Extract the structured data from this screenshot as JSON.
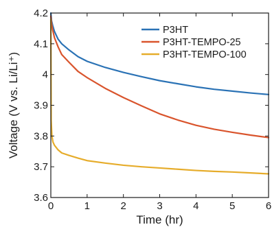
{
  "chart_data": {
    "type": "line",
    "title": "",
    "xlabel": "Time (hr)",
    "ylabel": "Voltage (V vs. Li/Li⁺)",
    "xlim": [
      0,
      6
    ],
    "ylim": [
      3.6,
      4.2
    ],
    "x_ticks": [
      0,
      1,
      2,
      3,
      4,
      5,
      6
    ],
    "x_tick_labels": [
      "0",
      "1",
      "2",
      "3",
      "4",
      "5",
      "6"
    ],
    "y_ticks": [
      3.6,
      3.7,
      3.8,
      3.9,
      4.0,
      4.1,
      4.2
    ],
    "y_tick_labels": [
      "3.6",
      "3.7",
      "3.8",
      "3.9",
      "4",
      "4.1",
      "4.2"
    ],
    "grid": false,
    "legend_position": "top-right",
    "series": [
      {
        "name": "P3HT",
        "color": "#2a72b5",
        "points": [
          [
            0,
            4.2
          ],
          [
            0.02,
            4.175
          ],
          [
            0.05,
            4.16
          ],
          [
            0.1,
            4.14
          ],
          [
            0.2,
            4.115
          ],
          [
            0.3,
            4.1
          ],
          [
            0.5,
            4.08
          ],
          [
            0.75,
            4.058
          ],
          [
            1,
            4.043
          ],
          [
            1.5,
            4.023
          ],
          [
            2,
            4.007
          ],
          [
            2.5,
            3.993
          ],
          [
            3,
            3.98
          ],
          [
            3.5,
            3.97
          ],
          [
            4,
            3.96
          ],
          [
            4.5,
            3.952
          ],
          [
            5,
            3.946
          ],
          [
            5.5,
            3.94
          ],
          [
            6,
            3.935
          ]
        ]
      },
      {
        "name": "P3HT-TEMPO-25",
        "color": "#d9542c",
        "points": [
          [
            0,
            4.19
          ],
          [
            0.02,
            4.165
          ],
          [
            0.05,
            4.145
          ],
          [
            0.1,
            4.12
          ],
          [
            0.2,
            4.09
          ],
          [
            0.3,
            4.065
          ],
          [
            0.5,
            4.04
          ],
          [
            0.75,
            4.01
          ],
          [
            1,
            3.99
          ],
          [
            1.5,
            3.955
          ],
          [
            2,
            3.925
          ],
          [
            2.5,
            3.898
          ],
          [
            3,
            3.872
          ],
          [
            3.5,
            3.852
          ],
          [
            4,
            3.835
          ],
          [
            4.5,
            3.822
          ],
          [
            5,
            3.812
          ],
          [
            5.5,
            3.803
          ],
          [
            6,
            3.795
          ]
        ]
      },
      {
        "name": "P3HT-TEMPO-100",
        "color": "#e6ac2a",
        "points": [
          [
            0,
            4.18
          ],
          [
            0.01,
            3.85
          ],
          [
            0.03,
            3.8
          ],
          [
            0.06,
            3.78
          ],
          [
            0.1,
            3.77
          ],
          [
            0.2,
            3.755
          ],
          [
            0.3,
            3.745
          ],
          [
            0.5,
            3.737
          ],
          [
            0.75,
            3.728
          ],
          [
            1,
            3.72
          ],
          [
            1.5,
            3.712
          ],
          [
            2,
            3.705
          ],
          [
            2.5,
            3.7
          ],
          [
            3,
            3.696
          ],
          [
            3.5,
            3.692
          ],
          [
            4,
            3.688
          ],
          [
            4.5,
            3.685
          ],
          [
            5,
            3.683
          ],
          [
            5.5,
            3.68
          ],
          [
            6,
            3.677
          ]
        ]
      }
    ]
  }
}
